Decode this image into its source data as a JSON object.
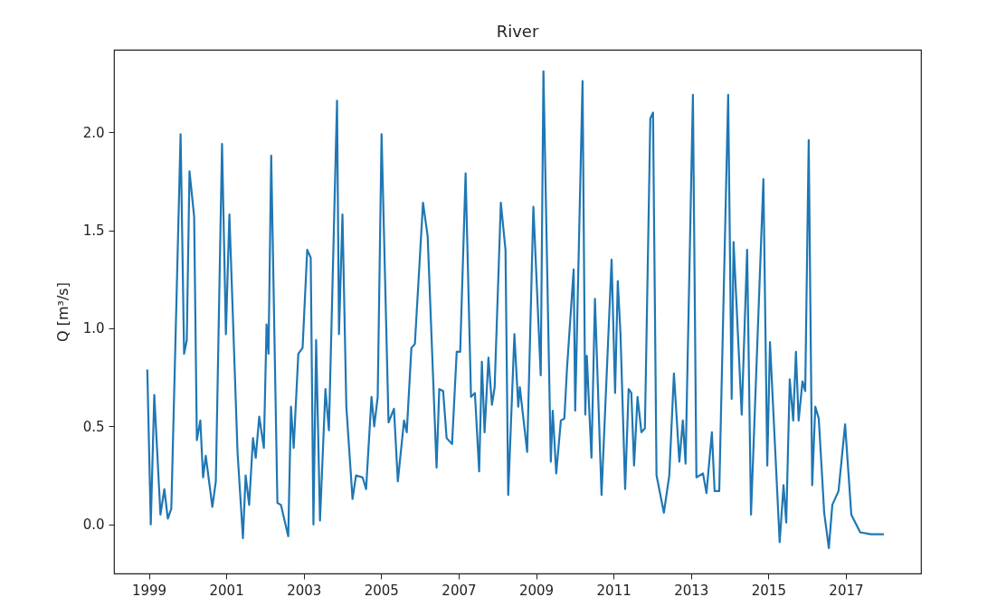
{
  "chart_data": {
    "type": "line",
    "title": "River",
    "ylabel": "Q [m³/s]",
    "x": [
      1998.96,
      1999.05,
      1999.14,
      1999.3,
      1999.4,
      1999.49,
      1999.58,
      1999.82,
      1999.91,
      1999.98,
      2000.05,
      2000.17,
      2000.24,
      2000.33,
      2000.4,
      2000.47,
      2000.64,
      2000.73,
      2000.89,
      2000.99,
      2001.08,
      2001.29,
      2001.43,
      2001.5,
      2001.59,
      2001.69,
      2001.76,
      2001.85,
      2001.97,
      2002.04,
      2002.09,
      2002.16,
      2002.32,
      2002.41,
      2002.6,
      2002.67,
      2002.74,
      2002.86,
      2002.97,
      2003.09,
      2003.18,
      2003.25,
      2003.32,
      2003.42,
      2003.56,
      2003.65,
      2003.86,
      2003.91,
      2004.0,
      2004.1,
      2004.26,
      2004.35,
      2004.52,
      2004.61,
      2004.75,
      2004.82,
      2004.91,
      2005.01,
      2005.19,
      2005.33,
      2005.43,
      2005.59,
      2005.66,
      2005.78,
      2005.87,
      2006.08,
      2006.2,
      2006.43,
      2006.5,
      2006.6,
      2006.69,
      2006.83,
      2006.95,
      2007.04,
      2007.18,
      2007.32,
      2007.42,
      2007.53,
      2007.6,
      2007.67,
      2007.77,
      2007.86,
      2007.93,
      2008.09,
      2008.21,
      2008.28,
      2008.44,
      2008.54,
      2008.58,
      2008.77,
      2008.93,
      2009.12,
      2009.19,
      2009.38,
      2009.43,
      2009.52,
      2009.64,
      2009.73,
      2009.8,
      2009.97,
      2010.01,
      2010.2,
      2010.27,
      2010.31,
      2010.43,
      2010.52,
      2010.69,
      2010.95,
      2011.04,
      2011.11,
      2011.18,
      2011.3,
      2011.39,
      2011.46,
      2011.53,
      2011.62,
      2011.72,
      2011.81,
      2011.95,
      2012.02,
      2012.11,
      2012.3,
      2012.44,
      2012.56,
      2012.7,
      2012.79,
      2012.86,
      2013.05,
      2013.14,
      2013.31,
      2013.4,
      2013.54,
      2013.61,
      2013.73,
      2013.96,
      2014.05,
      2014.1,
      2014.31,
      2014.45,
      2014.55,
      2014.87,
      2014.97,
      2015.04,
      2015.29,
      2015.39,
      2015.46,
      2015.55,
      2015.64,
      2015.71,
      2015.78,
      2015.88,
      2015.95,
      2016.04,
      2016.13,
      2016.21,
      2016.3,
      2016.44,
      2016.56,
      2016.65,
      2016.81,
      2016.98,
      2017.14,
      2017.37,
      2017.65,
      2017.98
    ],
    "series": [
      {
        "color": "#1f77b4",
        "values": [
          0.79,
          0.0,
          0.66,
          0.05,
          0.18,
          0.03,
          0.08,
          1.99,
          0.87,
          0.94,
          1.8,
          1.57,
          0.43,
          0.53,
          0.24,
          0.35,
          0.09,
          0.22,
          1.94,
          0.97,
          1.58,
          0.37,
          -0.07,
          0.25,
          0.1,
          0.44,
          0.34,
          0.55,
          0.39,
          1.02,
          0.87,
          1.88,
          0.11,
          0.1,
          -0.06,
          0.6,
          0.39,
          0.87,
          0.9,
          1.4,
          1.36,
          0.0,
          0.94,
          0.02,
          0.69,
          0.48,
          2.16,
          0.97,
          1.58,
          0.6,
          0.13,
          0.25,
          0.24,
          0.18,
          0.65,
          0.5,
          0.65,
          1.99,
          0.52,
          0.59,
          0.22,
          0.53,
          0.47,
          0.9,
          0.92,
          1.64,
          1.47,
          0.29,
          0.69,
          0.68,
          0.44,
          0.41,
          0.88,
          0.88,
          1.79,
          0.65,
          0.67,
          0.27,
          0.83,
          0.47,
          0.85,
          0.61,
          0.7,
          1.64,
          1.4,
          0.15,
          0.97,
          0.6,
          0.7,
          0.37,
          1.62,
          0.76,
          2.31,
          0.32,
          0.58,
          0.26,
          0.53,
          0.54,
          0.8,
          1.3,
          0.58,
          2.26,
          0.56,
          0.86,
          0.34,
          1.15,
          0.15,
          1.35,
          0.67,
          1.24,
          0.97,
          0.18,
          0.69,
          0.67,
          0.3,
          0.65,
          0.47,
          0.49,
          2.07,
          2.1,
          0.25,
          0.06,
          0.25,
          0.77,
          0.32,
          0.53,
          0.31,
          2.19,
          0.24,
          0.26,
          0.16,
          0.47,
          0.17,
          0.17,
          2.19,
          0.64,
          1.44,
          0.56,
          1.4,
          0.05,
          1.76,
          0.3,
          0.93,
          -0.09,
          0.2,
          0.01,
          0.74,
          0.53,
          0.88,
          0.53,
          0.73,
          0.68,
          1.96,
          0.2,
          0.6,
          0.54,
          0.06,
          -0.12,
          0.1,
          0.17,
          0.51,
          0.05,
          -0.04,
          -0.05,
          -0.05
        ]
      }
    ],
    "xlim": [
      1998.1,
      2018.94
    ],
    "xticks": [
      1999,
      2001,
      2003,
      2005,
      2007,
      2009,
      2011,
      2013,
      2015,
      2017
    ],
    "ylim": [
      -0.25,
      2.42
    ],
    "yticks": [
      {
        "value": 0,
        "label": "0.0"
      },
      0.5,
      {
        "value": 1,
        "label": "1.0"
      },
      1.5,
      {
        "value": 2,
        "label": "2.0"
      }
    ],
    "grid": false
  }
}
